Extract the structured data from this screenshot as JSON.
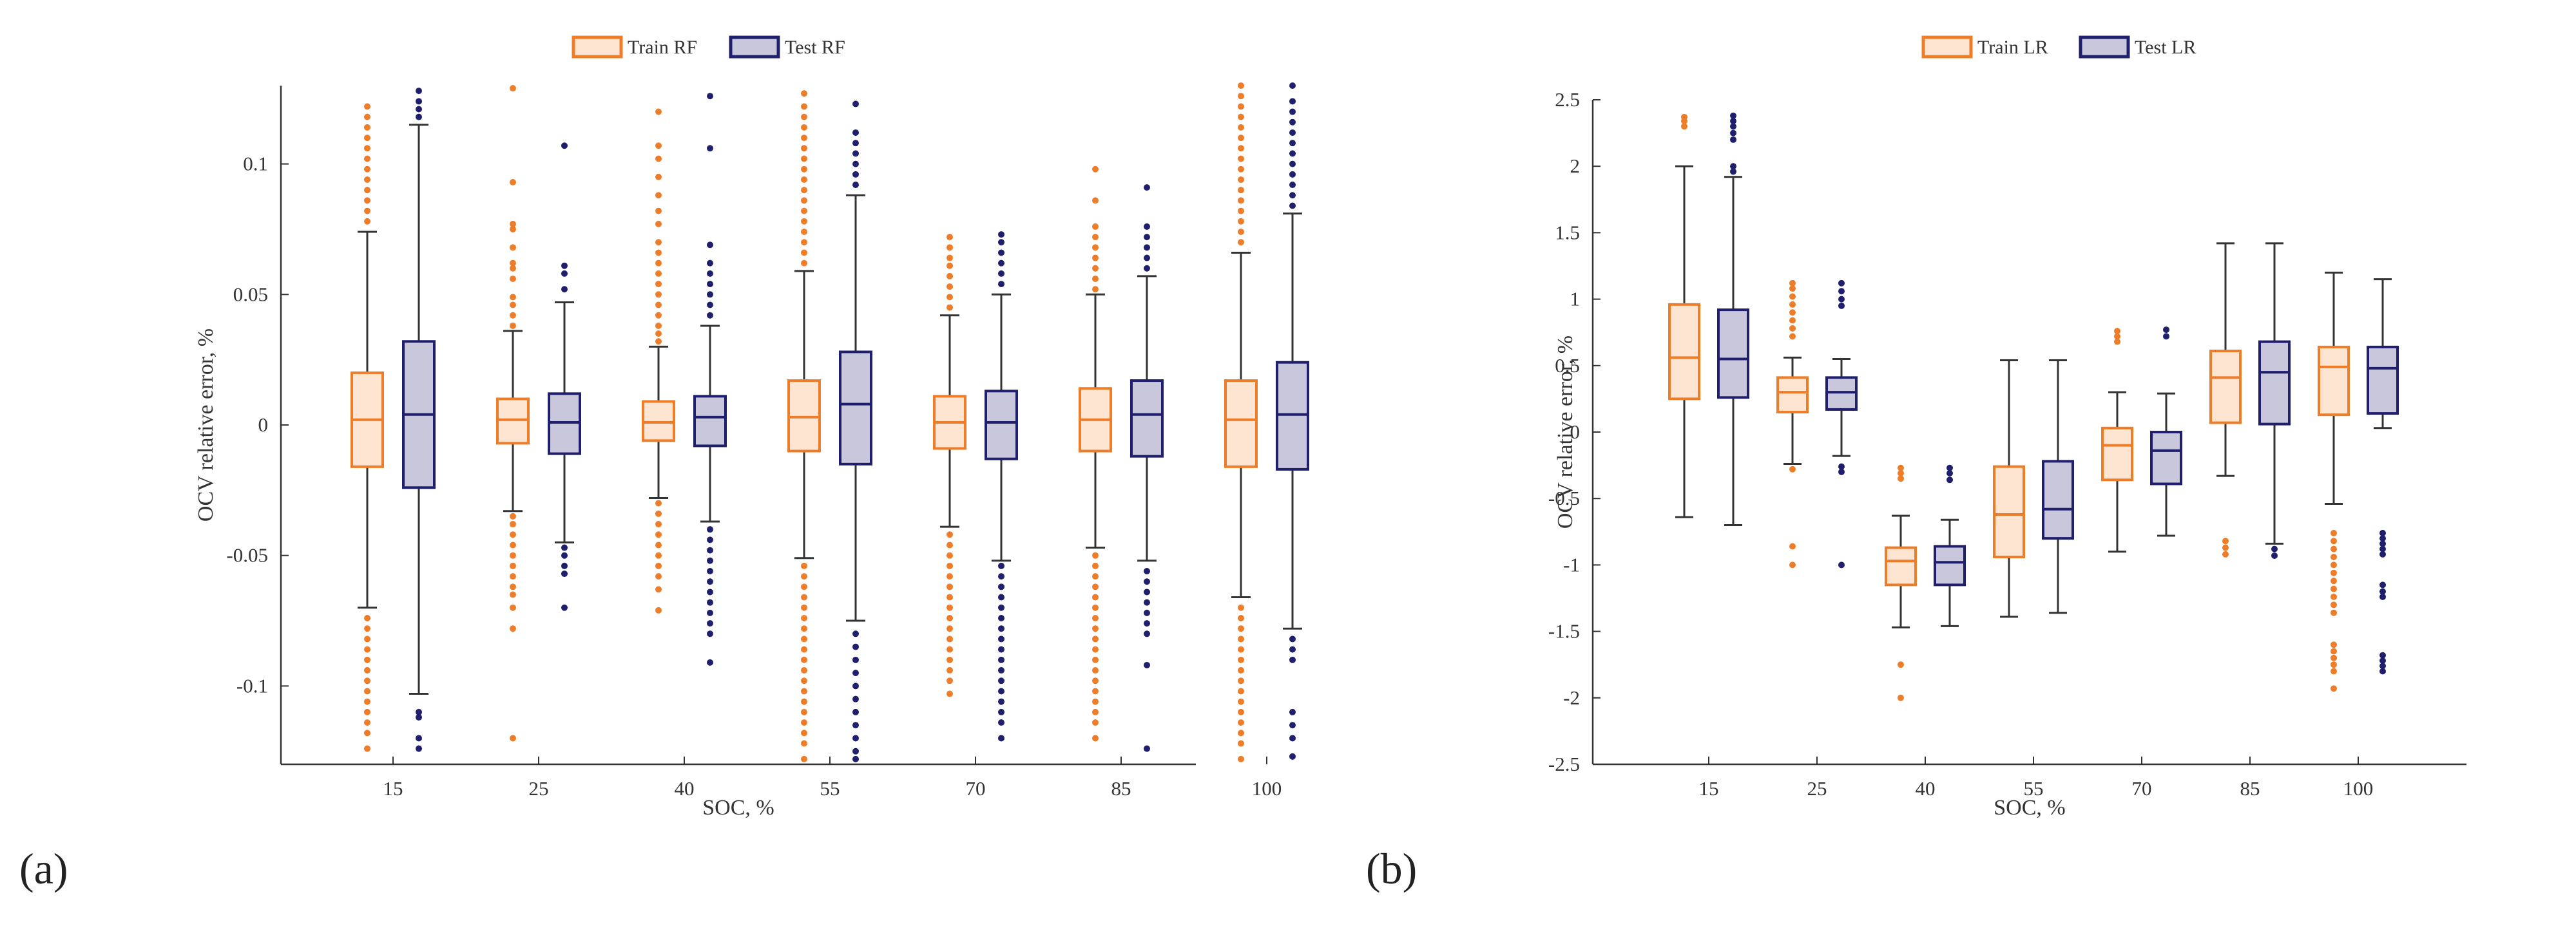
{
  "colors": {
    "train_edge": "#ee7d2a",
    "train_fill": "#fde5d2",
    "test_edge": "#1f1f6e",
    "test_fill": "#c9c7dc",
    "whisker": "#333333",
    "axis": "#333333"
  },
  "panel_labels": [
    "(a)",
    "(b)"
  ],
  "chart_data": [
    {
      "type": "box",
      "panel": "(a)",
      "xlabel": "SOC, %",
      "ylabel": "OCV relative error, %",
      "categories": [
        "15",
        "25",
        "40",
        "55",
        "70",
        "85",
        "100"
      ],
      "ylim": [
        -0.13,
        0.13
      ],
      "yticks": [
        -0.1,
        -0.05,
        0,
        0.05,
        0.1
      ],
      "ytick_labels": [
        "-0.1",
        "-0.05",
        "0",
        "0.05",
        "0.1"
      ],
      "legend": [
        "Train RF",
        "Test RF"
      ],
      "legend_position": "top-center",
      "series": [
        {
          "name": "Train RF",
          "boxes": [
            {
              "q1": -0.016,
              "median": 0.002,
              "q3": 0.02,
              "wlow": -0.07,
              "whigh": 0.074,
              "outliers": [
                0.078,
                0.082,
                0.086,
                0.09,
                0.094,
                0.098,
                0.102,
                0.106,
                0.11,
                0.114,
                0.118,
                0.122,
                -0.074,
                -0.078,
                -0.082,
                -0.086,
                -0.09,
                -0.094,
                -0.098,
                -0.102,
                -0.106,
                -0.11,
                -0.114,
                -0.118,
                -0.124
              ]
            },
            {
              "q1": -0.007,
              "median": 0.002,
              "q3": 0.01,
              "wlow": -0.033,
              "whigh": 0.036,
              "outliers": [
                0.038,
                0.042,
                0.046,
                0.049,
                0.056,
                0.06,
                0.062,
                0.068,
                0.075,
                0.077,
                0.093,
                0.129,
                -0.035,
                -0.038,
                -0.042,
                -0.046,
                -0.05,
                -0.054,
                -0.058,
                -0.062,
                -0.065,
                -0.07,
                -0.078,
                -0.12
              ]
            },
            {
              "q1": -0.006,
              "median": 0.001,
              "q3": 0.009,
              "wlow": -0.028,
              "whigh": 0.03,
              "outliers": [
                0.032,
                0.035,
                0.038,
                0.042,
                0.046,
                0.05,
                0.054,
                0.058,
                0.062,
                0.066,
                0.07,
                0.077,
                0.082,
                0.088,
                0.095,
                0.102,
                0.107,
                0.12,
                -0.03,
                -0.034,
                -0.038,
                -0.042,
                -0.046,
                -0.05,
                -0.054,
                -0.058,
                -0.063,
                -0.071
              ]
            },
            {
              "q1": -0.01,
              "median": 0.003,
              "q3": 0.017,
              "wlow": -0.051,
              "whigh": 0.059,
              "outliers": [
                0.062,
                0.066,
                0.07,
                0.074,
                0.078,
                0.082,
                0.086,
                0.09,
                0.094,
                0.098,
                0.102,
                0.106,
                0.11,
                0.114,
                0.118,
                0.122,
                0.127,
                -0.054,
                -0.058,
                -0.062,
                -0.066,
                -0.07,
                -0.074,
                -0.078,
                -0.082,
                -0.086,
                -0.09,
                -0.094,
                -0.098,
                -0.102,
                -0.106,
                -0.11,
                -0.114,
                -0.118,
                -0.122,
                -0.128
              ]
            },
            {
              "q1": -0.009,
              "median": 0.001,
              "q3": 0.011,
              "wlow": -0.039,
              "whigh": 0.042,
              "outliers": [
                0.045,
                0.049,
                0.053,
                0.057,
                0.061,
                0.064,
                0.068,
                0.072,
                -0.042,
                -0.046,
                -0.05,
                -0.054,
                -0.058,
                -0.062,
                -0.066,
                -0.07,
                -0.074,
                -0.078,
                -0.082,
                -0.086,
                -0.09,
                -0.094,
                -0.098,
                -0.103
              ]
            },
            {
              "q1": -0.01,
              "median": 0.002,
              "q3": 0.014,
              "wlow": -0.047,
              "whigh": 0.05,
              "outliers": [
                0.052,
                0.056,
                0.06,
                0.064,
                0.068,
                0.072,
                0.076,
                0.086,
                0.098,
                -0.05,
                -0.054,
                -0.058,
                -0.062,
                -0.066,
                -0.07,
                -0.074,
                -0.078,
                -0.082,
                -0.086,
                -0.09,
                -0.094,
                -0.098,
                -0.102,
                -0.106,
                -0.11,
                -0.114,
                -0.12
              ]
            },
            {
              "q1": -0.016,
              "median": 0.002,
              "q3": 0.017,
              "wlow": -0.066,
              "whigh": 0.066,
              "outliers": [
                0.07,
                0.074,
                0.078,
                0.082,
                0.086,
                0.09,
                0.094,
                0.098,
                0.102,
                0.106,
                0.11,
                0.114,
                0.118,
                0.122,
                0.126,
                0.13,
                -0.07,
                -0.074,
                -0.078,
                -0.082,
                -0.086,
                -0.09,
                -0.094,
                -0.098,
                -0.102,
                -0.106,
                -0.11,
                -0.114,
                -0.118,
                -0.122,
                -0.128
              ]
            }
          ]
        },
        {
          "name": "Test RF",
          "boxes": [
            {
              "q1": -0.024,
              "median": 0.004,
              "q3": 0.032,
              "wlow": -0.103,
              "whigh": 0.115,
              "outliers": [
                0.118,
                0.121,
                0.124,
                0.128,
                -0.11,
                -0.112,
                -0.12,
                -0.124
              ]
            },
            {
              "q1": -0.011,
              "median": 0.001,
              "q3": 0.012,
              "wlow": -0.045,
              "whigh": 0.047,
              "outliers": [
                0.052,
                0.058,
                0.061,
                0.107,
                -0.047,
                -0.05,
                -0.054,
                -0.057,
                -0.07
              ]
            },
            {
              "q1": -0.008,
              "median": 0.003,
              "q3": 0.011,
              "wlow": -0.037,
              "whigh": 0.038,
              "outliers": [
                0.042,
                0.046,
                0.05,
                0.054,
                0.058,
                0.062,
                0.069,
                0.106,
                0.126,
                -0.04,
                -0.044,
                -0.048,
                -0.052,
                -0.056,
                -0.06,
                -0.064,
                -0.068,
                -0.072,
                -0.076,
                -0.08,
                -0.091
              ]
            },
            {
              "q1": -0.015,
              "median": 0.008,
              "q3": 0.028,
              "wlow": -0.075,
              "whigh": 0.088,
              "outliers": [
                0.092,
                0.096,
                0.1,
                0.104,
                0.108,
                0.112,
                0.123,
                -0.08,
                -0.085,
                -0.09,
                -0.095,
                -0.1,
                -0.105,
                -0.11,
                -0.115,
                -0.12,
                -0.125,
                -0.128
              ]
            },
            {
              "q1": -0.013,
              "median": 0.001,
              "q3": 0.013,
              "wlow": -0.052,
              "whigh": 0.05,
              "outliers": [
                0.054,
                0.058,
                0.062,
                0.066,
                0.07,
                0.073,
                -0.054,
                -0.058,
                -0.062,
                -0.066,
                -0.07,
                -0.074,
                -0.078,
                -0.082,
                -0.086,
                -0.09,
                -0.094,
                -0.098,
                -0.102,
                -0.106,
                -0.11,
                -0.114,
                -0.12
              ]
            },
            {
              "q1": -0.012,
              "median": 0.004,
              "q3": 0.017,
              "wlow": -0.052,
              "whigh": 0.057,
              "outliers": [
                0.06,
                0.064,
                0.068,
                0.072,
                0.076,
                0.091,
                -0.056,
                -0.06,
                -0.064,
                -0.068,
                -0.072,
                -0.076,
                -0.08,
                -0.092,
                -0.124
              ]
            },
            {
              "q1": -0.017,
              "median": 0.004,
              "q3": 0.024,
              "wlow": -0.078,
              "whigh": 0.081,
              "outliers": [
                0.084,
                0.088,
                0.092,
                0.096,
                0.1,
                0.104,
                0.108,
                0.112,
                0.116,
                0.12,
                0.124,
                0.13,
                -0.082,
                -0.086,
                -0.09,
                -0.11,
                -0.115,
                -0.12,
                -0.127
              ]
            }
          ]
        }
      ]
    },
    {
      "type": "box",
      "panel": "(b)",
      "xlabel": "SOC, %",
      "ylabel": "OCV relative error, %",
      "categories": [
        "15",
        "25",
        "40",
        "55",
        "70",
        "85",
        "100"
      ],
      "ylim": [
        -2.5,
        2.5
      ],
      "yticks": [
        -2.5,
        -2,
        -1.5,
        -1,
        -0.5,
        0,
        0.5,
        1,
        1.5,
        2,
        2.5
      ],
      "ytick_labels": [
        "-2.5",
        "-2",
        "-1.5",
        "-1",
        "-0.5",
        "0",
        "0.5",
        "1",
        "1.5",
        "2",
        "2.5"
      ],
      "legend": [
        "Train LR",
        "Test LR"
      ],
      "legend_position": "top-center",
      "series": [
        {
          "name": "Train LR",
          "boxes": [
            {
              "q1": 0.25,
              "median": 0.56,
              "q3": 0.96,
              "wlow": -0.64,
              "whigh": 2.0,
              "outliers": [
                2.3,
                2.34,
                2.37
              ]
            },
            {
              "q1": 0.15,
              "median": 0.3,
              "q3": 0.41,
              "wlow": -0.24,
              "whigh": 0.56,
              "outliers": [
                0.72,
                0.78,
                0.84,
                0.9,
                0.96,
                1.02,
                1.08,
                1.12,
                -0.28,
                -0.86,
                -1.0
              ]
            },
            {
              "q1": -1.15,
              "median": -0.97,
              "q3": -0.87,
              "wlow": -1.47,
              "whigh": -0.63,
              "outliers": [
                -0.27,
                -0.31,
                -0.35,
                -1.75,
                -2.0
              ]
            },
            {
              "q1": -0.94,
              "median": -0.62,
              "q3": -0.26,
              "wlow": -1.39,
              "whigh": 0.54,
              "outliers": []
            },
            {
              "q1": -0.36,
              "median": -0.1,
              "q3": 0.03,
              "wlow": -0.9,
              "whigh": 0.3,
              "outliers": [
                0.68,
                0.72,
                0.76
              ]
            },
            {
              "q1": 0.07,
              "median": 0.41,
              "q3": 0.61,
              "wlow": -0.33,
              "whigh": 1.42,
              "outliers": [
                -0.82,
                -0.87,
                -0.92
              ]
            },
            {
              "q1": 0.13,
              "median": 0.49,
              "q3": 0.64,
              "wlow": -0.54,
              "whigh": 1.2,
              "outliers": [
                -0.76,
                -0.82,
                -0.88,
                -0.94,
                -1.0,
                -1.06,
                -1.12,
                -1.18,
                -1.24,
                -1.3,
                -1.36,
                -1.6,
                -1.65,
                -1.7,
                -1.75,
                -1.8,
                -1.93
              ]
            }
          ]
        },
        {
          "name": "Test LR",
          "boxes": [
            {
              "q1": 0.26,
              "median": 0.55,
              "q3": 0.92,
              "wlow": -0.7,
              "whigh": 1.92,
              "outliers": [
                1.96,
                2.0,
                2.2,
                2.25,
                2.3,
                2.34,
                2.38
              ]
            },
            {
              "q1": 0.17,
              "median": 0.3,
              "q3": 0.41,
              "wlow": -0.18,
              "whigh": 0.55,
              "outliers": [
                0.95,
                1.0,
                1.06,
                1.12,
                -0.26,
                -0.3,
                -1.0
              ]
            },
            {
              "q1": -1.15,
              "median": -0.98,
              "q3": -0.86,
              "wlow": -1.46,
              "whigh": -0.66,
              "outliers": [
                -0.27,
                -0.31,
                -0.36
              ]
            },
            {
              "q1": -0.8,
              "median": -0.58,
              "q3": -0.22,
              "wlow": -1.36,
              "whigh": 0.54,
              "outliers": []
            },
            {
              "q1": -0.39,
              "median": -0.14,
              "q3": 0.0,
              "wlow": -0.78,
              "whigh": 0.29,
              "outliers": [
                0.72,
                0.77
              ]
            },
            {
              "q1": 0.06,
              "median": 0.45,
              "q3": 0.68,
              "wlow": -0.84,
              "whigh": 1.42,
              "outliers": [
                -0.88,
                -0.93
              ]
            },
            {
              "q1": 0.14,
              "median": 0.48,
              "q3": 0.64,
              "wlow": 0.03,
              "whigh": 1.15,
              "outliers": [
                -0.76,
                -0.8,
                -0.84,
                -0.88,
                -0.92,
                -1.15,
                -1.2,
                -1.24,
                -1.68,
                -1.72,
                -1.76,
                -1.8
              ]
            }
          ]
        }
      ]
    }
  ]
}
